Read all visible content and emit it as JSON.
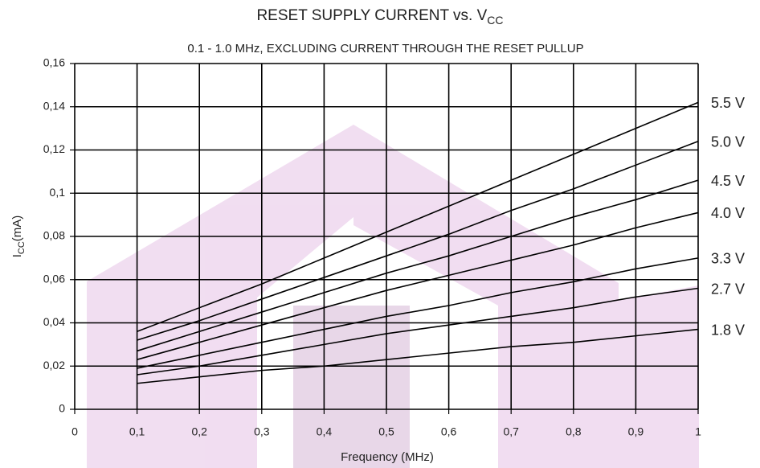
{
  "chart_data": {
    "type": "line",
    "title": {
      "main": "RESET SUPPLY CURRENT vs. V",
      "sub": "CC"
    },
    "subtitle": "0.1 - 1.0 MHz, EXCLUDING CURRENT THROUGH THE RESET PULLUP",
    "xlabel": "Frequency (MHz)",
    "ylabel": {
      "main": "I",
      "sub": "CC",
      "rest": "(mA)"
    },
    "x": [
      0.1,
      0.2,
      0.3,
      0.4,
      0.5,
      0.6,
      0.7,
      0.8,
      0.9,
      1
    ],
    "series": [
      {
        "name": "5.5 V",
        "color": "#000000",
        "values": [
          0.036,
          0.047,
          0.058,
          0.07,
          0.082,
          0.094,
          0.106,
          0.118,
          0.13,
          0.142
        ]
      },
      {
        "name": "5.0 V",
        "color": "#000000",
        "values": [
          0.032,
          0.041,
          0.051,
          0.061,
          0.071,
          0.081,
          0.092,
          0.102,
          0.113,
          0.124
        ]
      },
      {
        "name": "4.5 V",
        "color": "#000000",
        "values": [
          0.027,
          0.036,
          0.045,
          0.054,
          0.063,
          0.071,
          0.08,
          0.089,
          0.097,
          0.106
        ]
      },
      {
        "name": "4.0 V",
        "color": "#000000",
        "values": [
          0.023,
          0.031,
          0.039,
          0.047,
          0.055,
          0.062,
          0.069,
          0.076,
          0.084,
          0.091
        ]
      },
      {
        "name": "3.3 V",
        "color": "#000000",
        "values": [
          0.019,
          0.025,
          0.031,
          0.037,
          0.043,
          0.048,
          0.054,
          0.059,
          0.065,
          0.07
        ]
      },
      {
        "name": "2.7 V",
        "color": "#000000",
        "values": [
          0.016,
          0.02,
          0.025,
          0.03,
          0.035,
          0.039,
          0.043,
          0.047,
          0.052,
          0.056
        ]
      },
      {
        "name": "1.8 V",
        "color": "#000000",
        "values": [
          0.012,
          0.015,
          0.018,
          0.02,
          0.023,
          0.026,
          0.029,
          0.031,
          0.034,
          0.037
        ]
      }
    ],
    "xlim": [
      0,
      1
    ],
    "xticks": [
      0,
      {
        "value": 0.1,
        "label": "0,1"
      },
      {
        "value": 0.2,
        "label": "0,2"
      },
      {
        "value": 0.3,
        "label": "0,3"
      },
      {
        "value": 0.4,
        "label": "0,4"
      },
      {
        "value": 0.5,
        "label": "0,5"
      },
      {
        "value": 0.6,
        "label": "0,6"
      },
      {
        "value": 0.7,
        "label": "0,7"
      },
      {
        "value": 0.8,
        "label": "0,8"
      },
      {
        "value": 0.9,
        "label": "0,9"
      },
      1
    ],
    "ylim": [
      0,
      0.16
    ],
    "yticks": [
      0,
      {
        "value": 0.02,
        "label": "0,02"
      },
      {
        "value": 0.04,
        "label": "0,04"
      },
      {
        "value": 0.06,
        "label": "0,06"
      },
      {
        "value": 0.08,
        "label": "0,08"
      },
      {
        "value": 0.1,
        "label": "0,1"
      },
      {
        "value": 0.12,
        "label": "0,12"
      },
      {
        "value": 0.14,
        "label": "0,14"
      },
      {
        "value": 0.16,
        "label": "0,16"
      }
    ],
    "grid": true
  }
}
